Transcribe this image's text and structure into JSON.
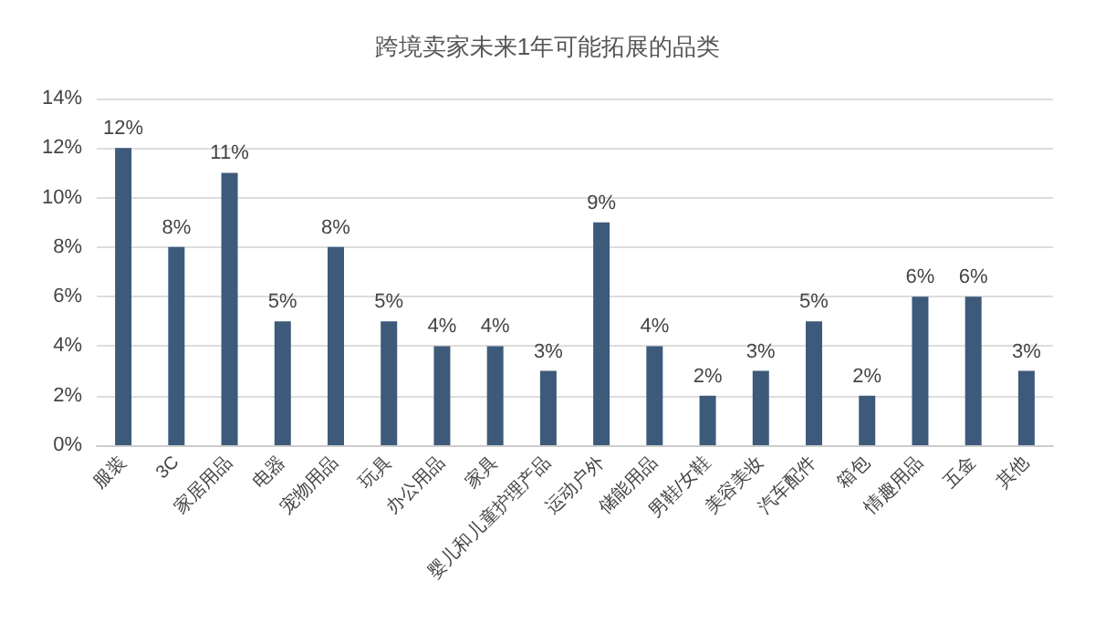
{
  "chart_data": {
    "type": "bar",
    "title": "跨境卖家未来1年可能拓展的品类",
    "categories": [
      "服装",
      "3C",
      "家居用品",
      "电器",
      "宠物用品",
      "玩具",
      "办公用品",
      "家具",
      "婴儿和儿童护理产品",
      "运动户外",
      "储能用品",
      "男鞋/女鞋",
      "美容美妆",
      "汽车配件",
      "箱包",
      "情趣用品",
      "五金",
      "其他"
    ],
    "values": [
      12,
      8,
      11,
      5,
      8,
      5,
      4,
      4,
      3,
      9,
      4,
      2,
      3,
      5,
      2,
      6,
      6,
      3
    ],
    "value_labels": [
      "12%",
      "8%",
      "11%",
      "5%",
      "8%",
      "5%",
      "4%",
      "4%",
      "3%",
      "9%",
      "4%",
      "2%",
      "3%",
      "5%",
      "2%",
      "6%",
      "6%",
      "3%"
    ],
    "color": "#3d5a7a",
    "ylim": [
      0,
      14
    ],
    "yticks": [
      {
        "value": 0,
        "label": "0%"
      },
      {
        "value": 2,
        "label": "2%"
      },
      {
        "value": 4,
        "label": "4%"
      },
      {
        "value": 6,
        "label": "6%"
      },
      {
        "value": 8,
        "label": "8%"
      },
      {
        "value": 10,
        "label": "10%"
      },
      {
        "value": 12,
        "label": "12%"
      },
      {
        "value": 14,
        "label": "14%"
      }
    ],
    "grid": "y"
  }
}
